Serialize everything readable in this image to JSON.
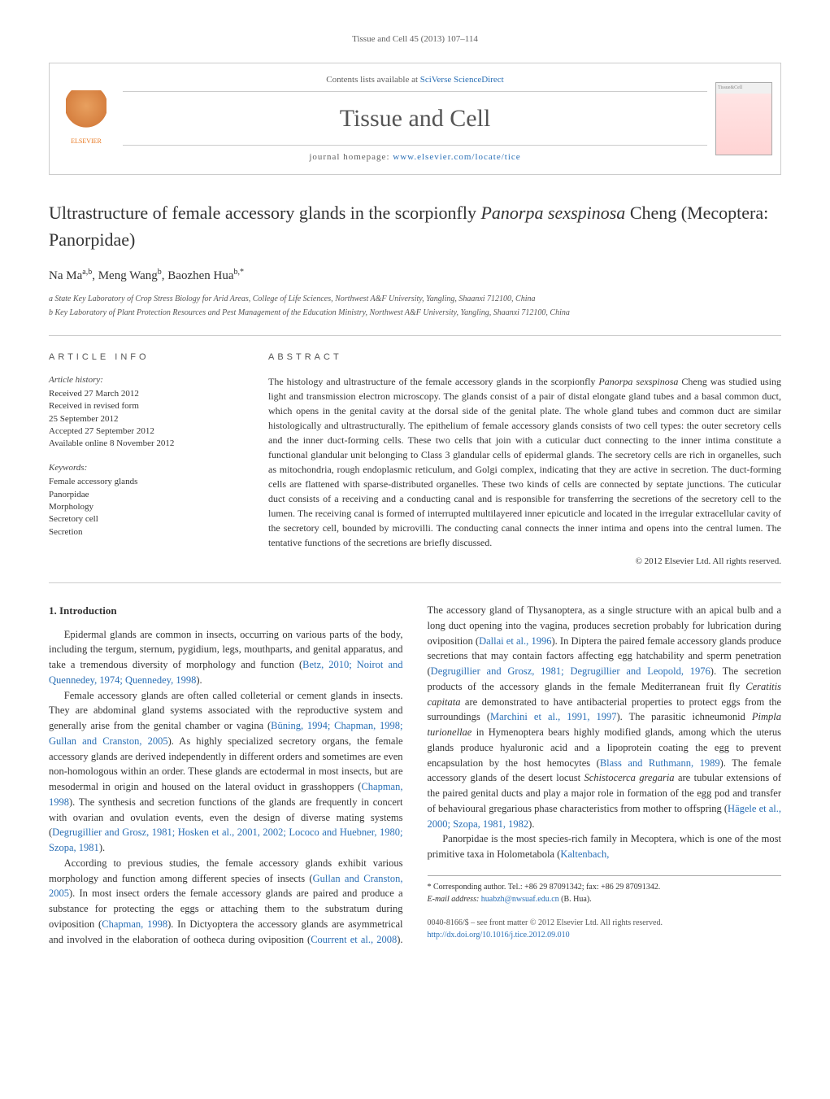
{
  "journal_ref": "Tissue and Cell 45 (2013) 107–114",
  "header": {
    "contents_prefix": "Contents lists available at ",
    "contents_link": "SciVerse ScienceDirect",
    "journal_name": "Tissue and Cell",
    "homepage_prefix": "journal homepage: ",
    "homepage_link": "www.elsevier.com/locate/tice",
    "publisher_label": "ELSEVIER",
    "cover_label": "Tissue&Cell"
  },
  "title_html": "Ultrastructure of female accessory glands in the scorpionfly <span class=\"species\">Panorpa sexspinosa</span> Cheng (Mecoptera: Panorpidae)",
  "authors_html": "Na Ma<sup>a,b</sup>, Meng Wang<sup>b</sup>, Baozhen Hua<sup>b,*</sup>",
  "affiliations": [
    "a State Key Laboratory of Crop Stress Biology for Arid Areas, College of Life Sciences, Northwest A&F University, Yangling, Shaanxi 712100, China",
    "b Key Laboratory of Plant Protection Resources and Pest Management of the Education Ministry, Northwest A&F University, Yangling, Shaanxi 712100, China"
  ],
  "article_info": {
    "label": "ARTICLE INFO",
    "history_label": "Article history:",
    "history": [
      "Received 27 March 2012",
      "Received in revised form",
      "25 September 2012",
      "Accepted 27 September 2012",
      "Available online 8 November 2012"
    ],
    "keywords_label": "Keywords:",
    "keywords": [
      "Female accessory glands",
      "Panorpidae",
      "Morphology",
      "Secretory cell",
      "Secretion"
    ]
  },
  "abstract": {
    "label": "ABSTRACT",
    "text_html": "The histology and ultrastructure of the female accessory glands in the scorpionfly <span class=\"species\">Panorpa sexspinosa</span> Cheng was studied using light and transmission electron microscopy. The glands consist of a pair of distal elongate gland tubes and a basal common duct, which opens in the genital cavity at the dorsal side of the genital plate. The whole gland tubes and common duct are similar histologically and ultrastructurally. The epithelium of female accessory glands consists of two cell types: the outer secretory cells and the inner duct-forming cells. These two cells that join with a cuticular duct connecting to the inner intima constitute a functional glandular unit belonging to Class 3 glandular cells of epidermal glands. The secretory cells are rich in organelles, such as mitochondria, rough endoplasmic reticulum, and Golgi complex, indicating that they are active in secretion. The duct-forming cells are flattened with sparse-distributed organelles. These two kinds of cells are connected by septate junctions. The cuticular duct consists of a receiving and a conducting canal and is responsible for transferring the secretions of the secretory cell to the lumen. The receiving canal is formed of interrupted multilayered inner epicuticle and located in the irregular extracellular cavity of the secretory cell, bounded by microvilli. The conducting canal connects the inner intima and opens into the central lumen. The tentative functions of the secretions are briefly discussed.",
    "copyright": "© 2012 Elsevier Ltd. All rights reserved."
  },
  "body": {
    "section_heading": "1. Introduction",
    "p1_html": "Epidermal glands are common in insects, occurring on various parts of the body, including the tergum, sternum, pygidium, legs, mouthparts, and genital apparatus, and take a tremendous diversity of morphology and function (<a>Betz, 2010; Noirot and Quennedey, 1974; Quennedey, 1998</a>).",
    "p2_html": "Female accessory glands are often called colleterial or cement glands in insects. They are abdominal gland systems associated with the reproductive system and generally arise from the genital chamber or vagina (<a>Büning, 1994; Chapman, 1998; Gullan and Cranston, 2005</a>). As highly specialized secretory organs, the female accessory glands are derived independently in different orders and sometimes are even non-homologous within an order. These glands are ectodermal in most insects, but are mesodermal in origin and housed on the lateral oviduct in grasshoppers (<a>Chapman, 1998</a>). The synthesis and secretion functions of the glands are frequently in concert with ovarian and ovulation events, even the design of diverse mating systems (<a>Degrugillier and Grosz, 1981; Hosken et al., 2001, 2002; Lococo and Huebner, 1980; Szopa, 1981</a>).",
    "p3_html": "According to previous studies, the female accessory glands exhibit various morphology and function among different species of insects (<a>Gullan and Cranston, 2005</a>). In most insect orders the female accessory glands are paired and produce a substance for protecting the eggs or attaching them to the substratum during oviposition (<a>Chapman, 1998</a>). In Dictyoptera the accessory glands are asymmetrical and involved in the elaboration of ootheca during oviposition (<a>Courrent et al., 2008</a>). The accessory gland of Thysanoptera, as a single structure with an apical bulb and a long duct opening into the vagina, produces secretion probably for lubrication during oviposition (<a>Dallai et al., 1996</a>). In Diptera the paired female accessory glands produce secretions that may contain factors affecting egg hatchability and sperm penetration (<a>Degrugillier and Grosz, 1981; Degrugillier and Leopold, 1976</a>). The secretion products of the accessory glands in the female Mediterranean fruit fly <span class=\"species\">Ceratitis capitata</span> are demonstrated to have antibacterial properties to protect eggs from the surroundings (<a>Marchini et al., 1991, 1997</a>). The parasitic ichneumonid <span class=\"species\">Pimpla turionellae</span> in Hymenoptera bears highly modified glands, among which the uterus glands produce hyaluronic acid and a lipoprotein coating the egg to prevent encapsulation by the host hemocytes (<a>Blass and Ruthmann, 1989</a>). The female accessory glands of the desert locust <span class=\"species\">Schistocerca gregaria</span> are tubular extensions of the paired genital ducts and play a major role in formation of the egg pod and transfer of behavioural gregarious phase characteristics from mother to offspring (<a>Hägele et al., 2000; Szopa, 1981, 1982</a>).",
    "p4_html": "Panorpidae is the most species-rich family in Mecoptera, which is one of the most primitive taxa in Holometabola (<a>Kaltenbach,</a>"
  },
  "footnote": {
    "corresponding_html": "* Corresponding author. Tel.: +86 29 87091342; fax: +86 29 87091342.",
    "email_label": "E-mail address:",
    "email": "huabzh@nwsuaf.edu.cn",
    "email_who": "(B. Hua)."
  },
  "footer": {
    "line1": "0040-8166/$ – see front matter © 2012 Elsevier Ltd. All rights reserved.",
    "doi": "http://dx.doi.org/10.1016/j.tice.2012.09.010"
  },
  "colors": {
    "link": "#2a6fb5",
    "text": "#333333",
    "rule": "#cccccc",
    "elsevier": "#e8771f"
  }
}
